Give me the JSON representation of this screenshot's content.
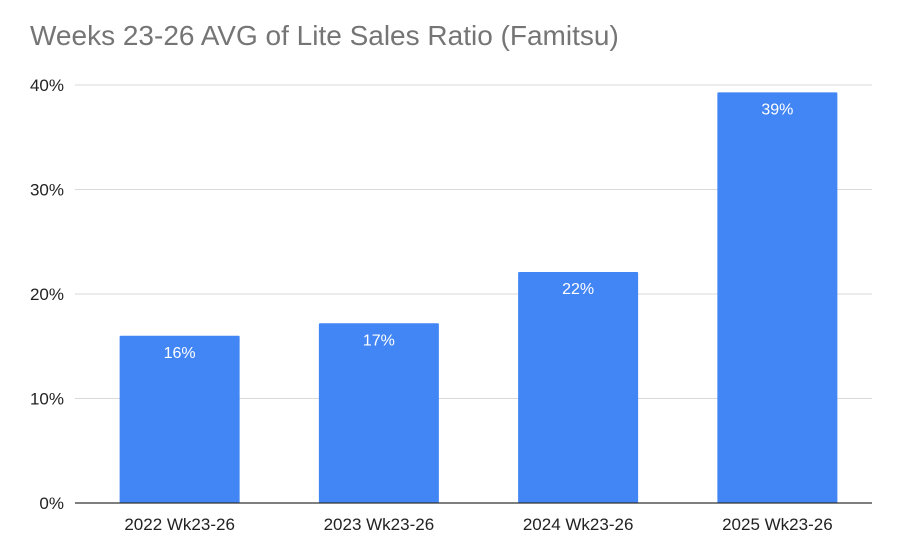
{
  "chart_data": {
    "type": "bar",
    "title": "Weeks 23-26 AVG of Lite Sales Ratio (Famitsu)",
    "xlabel": "",
    "ylabel": "",
    "categories": [
      "2022 Wk23-26",
      "2023 Wk23-26",
      "2024 Wk23-26",
      "2025 Wk23-26"
    ],
    "values": [
      16,
      17.2,
      22.1,
      39.3
    ],
    "data_labels": [
      "16%",
      "17%",
      "22%",
      "39%"
    ],
    "ylim": [
      0,
      40
    ],
    "yticks": [
      0,
      10,
      20,
      30,
      40
    ],
    "ytick_labels": [
      "0%",
      "10%",
      "20%",
      "30%",
      "40%"
    ],
    "grid": true,
    "legend": "none",
    "bar_color": "#4285f4",
    "grid_color": "#d9d9d9",
    "axis_color": "#333333"
  }
}
